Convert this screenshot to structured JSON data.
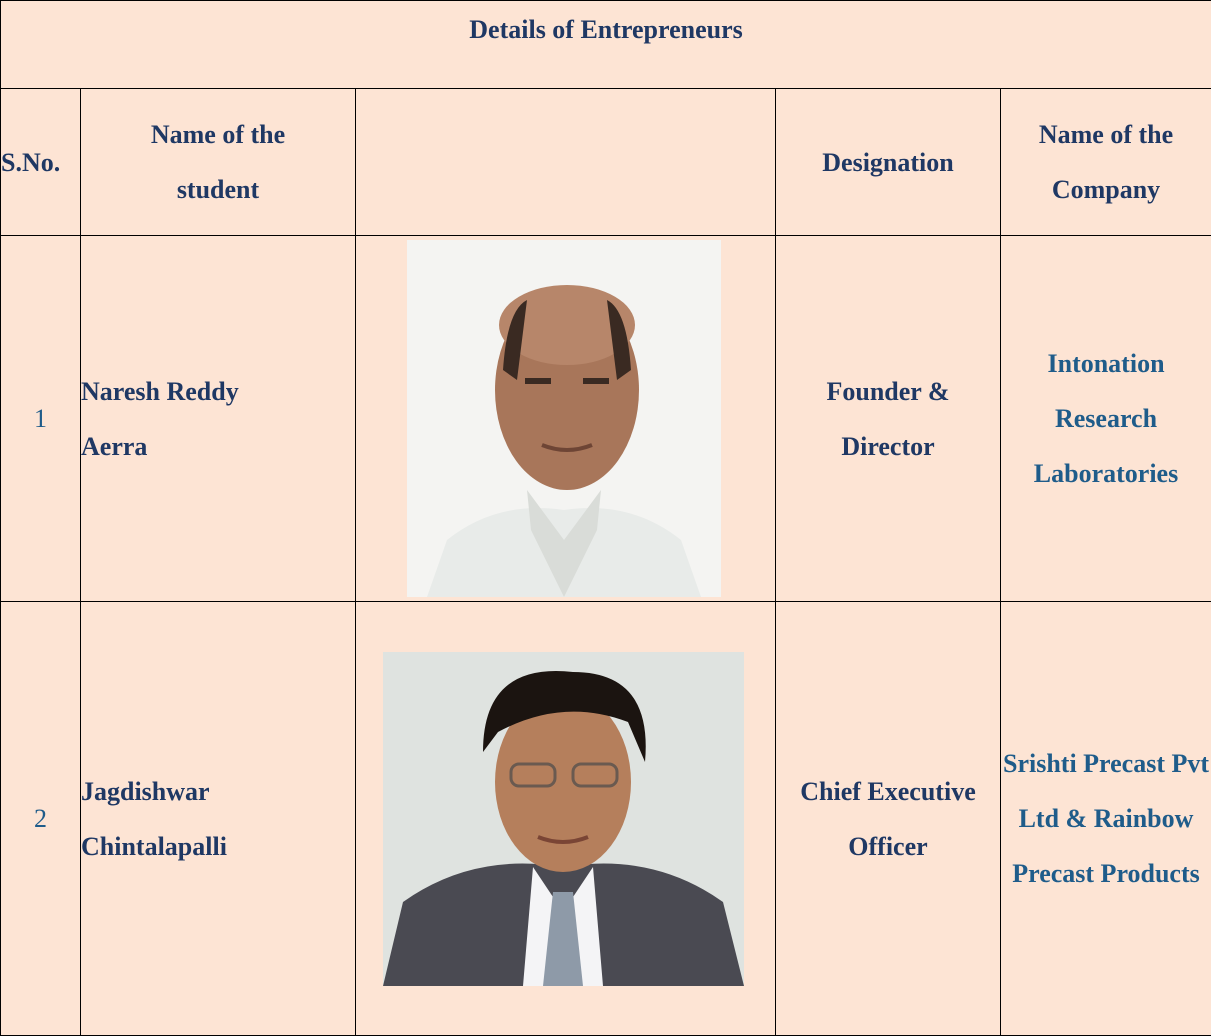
{
  "header": {
    "title": "Details of Entrepreneurs"
  },
  "table": {
    "headers": [
      "S.No.",
      "Name of the student",
      "Designation",
      "Name of the Company"
    ],
    "rows": [
      [
        "1",
        "Naresh Reddy Aerra",
        "Founder & Director",
        "Intonation Research Laboratories"
      ],
      [
        "2",
        "Jagdishwar Chintalapalli",
        "Chief Executive Officer",
        "Srishti Precast Pvt Ltd & Rainbow Precast Products"
      ]
    ]
  }
}
